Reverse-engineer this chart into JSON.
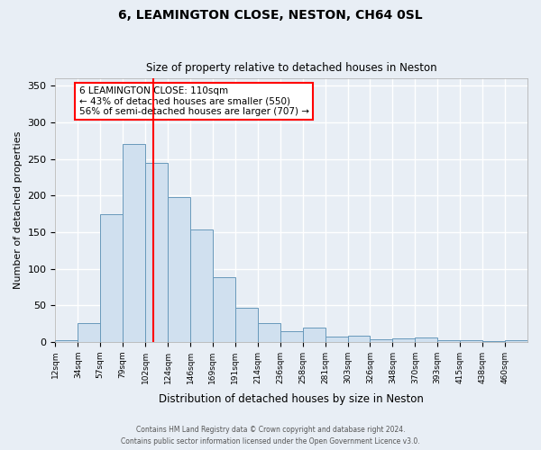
{
  "title1": "6, LEAMINGTON CLOSE, NESTON, CH64 0SL",
  "title2": "Size of property relative to detached houses in Neston",
  "xlabel": "Distribution of detached houses by size in Neston",
  "ylabel": "Number of detached properties",
  "bin_labels": [
    "12sqm",
    "34sqm",
    "57sqm",
    "79sqm",
    "102sqm",
    "124sqm",
    "146sqm",
    "169sqm",
    "191sqm",
    "214sqm",
    "236sqm",
    "258sqm",
    "281sqm",
    "303sqm",
    "326sqm",
    "348sqm",
    "370sqm",
    "393sqm",
    "415sqm",
    "438sqm",
    "460sqm"
  ],
  "bar_heights": [
    2,
    25,
    175,
    270,
    245,
    198,
    153,
    88,
    47,
    25,
    14,
    20,
    7,
    8,
    4,
    5,
    6,
    2,
    2,
    1,
    2
  ],
  "bar_color": "#d0e0ef",
  "bar_edge_color": "#6899bb",
  "red_line_index": 4.36,
  "annotation_line1": "6 LEAMINGTON CLOSE: 110sqm",
  "annotation_line2": "← 43% of detached houses are smaller (550)",
  "annotation_line3": "56% of semi-detached houses are larger (707) →",
  "annotation_box_color": "white",
  "annotation_box_edge": "red",
  "ylim": [
    0,
    360
  ],
  "yticks": [
    0,
    50,
    100,
    150,
    200,
    250,
    300,
    350
  ],
  "footer1": "Contains HM Land Registry data © Crown copyright and database right 2024.",
  "footer2": "Contains public sector information licensed under the Open Government Licence v3.0.",
  "background_color": "#e8eef5",
  "grid_color": "white"
}
